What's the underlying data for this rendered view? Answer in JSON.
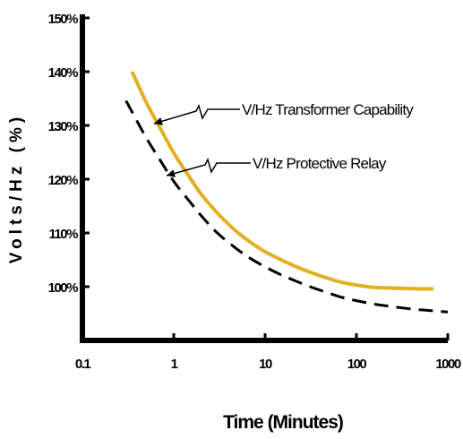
{
  "chart_data": {
    "type": "line",
    "xscale": "log",
    "xlim": [
      0.1,
      1000
    ],
    "ylim": [
      90,
      150
    ],
    "xticks": [
      0.1,
      1,
      10,
      100,
      1000
    ],
    "xtick_labels": [
      "0.1",
      "1",
      "10",
      "100",
      "1000"
    ],
    "yticks": [
      100,
      110,
      120,
      130,
      140,
      150
    ],
    "ytick_labels": [
      "100%",
      "110%",
      "120%",
      "130%",
      "140%",
      "150%"
    ],
    "xlabel": "Time (Minutes)",
    "ylabel": "Volts/Hz (%)",
    "grid": false,
    "series": [
      {
        "name": "V/Hz Transformer Capability",
        "color": "#e0b020",
        "style": "solid",
        "x": [
          0.35,
          0.5,
          0.7,
          1,
          1.5,
          2,
          3,
          4,
          5,
          7,
          10,
          15,
          20,
          30,
          50,
          70,
          100,
          150,
          200,
          300,
          500,
          700
        ],
        "y": [
          140,
          134.3,
          129.7,
          124.9,
          120.3,
          117.2,
          113.7,
          111.6,
          110.1,
          108.2,
          106.5,
          105,
          104,
          102.8,
          101.5,
          100.8,
          100.3,
          99.9,
          99.8,
          99.7,
          99.6,
          99.6
        ]
      },
      {
        "name": "V/Hz Protective Relay",
        "color": "#000000",
        "style": "dashed",
        "x": [
          0.3,
          0.5,
          0.7,
          1,
          1.5,
          2,
          3,
          5,
          7,
          10,
          15,
          20,
          30,
          50,
          70,
          100,
          150,
          200,
          300,
          500,
          700,
          1000
        ],
        "y": [
          134.6,
          127.7,
          123.7,
          119.6,
          115.8,
          113.2,
          110,
          106.9,
          105.2,
          103.7,
          102.2,
          101.3,
          100.1,
          98.8,
          98,
          97.4,
          96.8,
          96.5,
          96.1,
          95.7,
          95.5,
          95.3
        ]
      }
    ]
  }
}
